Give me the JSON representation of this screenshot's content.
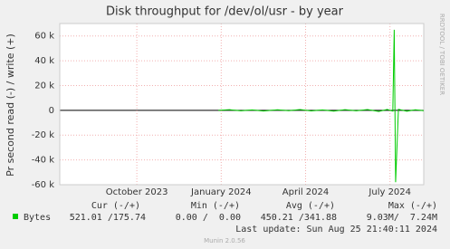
{
  "chart_data": {
    "type": "line",
    "title": "Disk throughput for /dev/ol/usr - by year",
    "y_label": "Pr second read (-) / write (+)",
    "side_label": "RRDTOOL / TOBI OETIKER",
    "x": [
      2.9,
      3.3,
      3.7,
      4.1,
      4.5,
      5.0,
      5.4,
      5.8,
      6.2,
      6.6,
      7.0,
      7.4,
      7.8,
      8.2,
      8.6,
      8.9,
      9.1,
      9.15,
      9.2,
      9.3,
      9.6,
      9.9,
      10.2
    ],
    "series": [
      {
        "name": "Bytes",
        "color": "#00cc00",
        "values": [
          0,
          500,
          -400,
          300,
          -600,
          400,
          -300,
          600,
          -500,
          300,
          -700,
          500,
          -400,
          600,
          -900,
          700,
          -600,
          65000,
          -58000,
          800,
          -700,
          400,
          -300
        ]
      }
    ],
    "xlim": [
      -2.74,
      10.2
    ],
    "xticks": [
      {
        "value": 0,
        "label": "October 2023"
      },
      {
        "value": 3,
        "label": "January 2024"
      },
      {
        "value": 6,
        "label": "April 2024"
      },
      {
        "value": 9,
        "label": "July 2024"
      }
    ],
    "ylim": [
      -60000,
      70000
    ],
    "yticks": [
      {
        "value": -60000,
        "label": "-60 k"
      },
      {
        "value": -40000,
        "label": "-40 k"
      },
      {
        "value": -20000,
        "label": "-20 k"
      },
      0,
      {
        "value": 20000,
        "label": "20 k"
      },
      {
        "value": 40000,
        "label": "40 k"
      },
      {
        "value": 60000,
        "label": "60 k"
      }
    ],
    "grid": true,
    "legend": {
      "headers": [
        "Cur (-/+)",
        "Min (-/+)",
        "Avg (-/+)",
        "Max (-/+)"
      ],
      "row": [
        "521.01 /175.74",
        "0.00 /  0.00",
        "450.21 /341.88",
        "9.03M/  7.24M"
      ]
    },
    "last_update": "Last update: Sun Aug 25 21:40:11 2024",
    "footer": "Munin 2.0.56"
  }
}
